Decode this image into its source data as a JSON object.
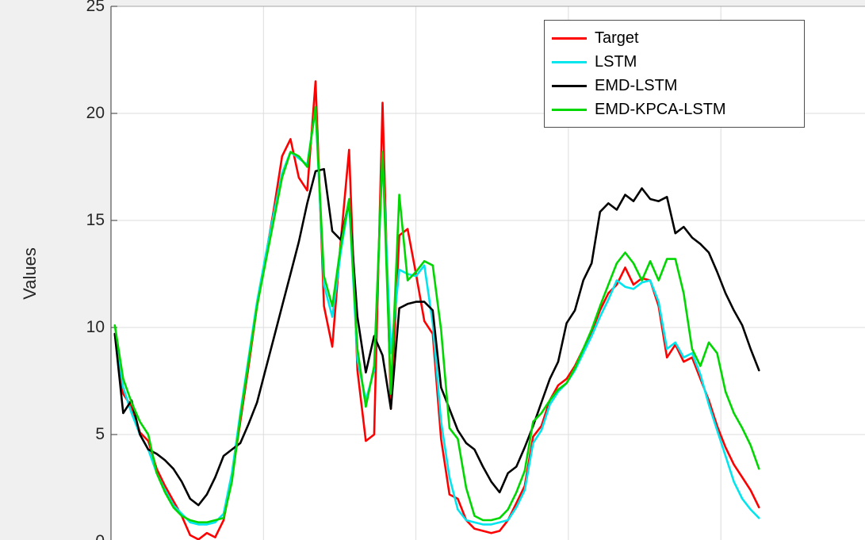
{
  "figure": {
    "background_color": "#f0f0f0",
    "plot_background_color": "#ffffff",
    "grid_color": "#dcdcdc",
    "axis_color": "#555555",
    "tick_label_color": "#262626"
  },
  "chart_data": {
    "type": "line",
    "title": "",
    "xlabel": "",
    "ylabel": "Values",
    "ylim": [
      0,
      25
    ],
    "xlim": [
      0,
      100
    ],
    "yticks": [
      0,
      5,
      10,
      15,
      20,
      25
    ],
    "x_gridlines": [
      20,
      40,
      60,
      80
    ],
    "grid": true,
    "legend_position": "top-right",
    "x_start": 0.5,
    "x_end": 85,
    "series": [
      {
        "name": "Target",
        "color": "#ff0000",
        "values": [
          9.7,
          6.9,
          6.3,
          5.1,
          4.7,
          3.4,
          2.6,
          1.9,
          1.2,
          0.3,
          0.1,
          0.4,
          0.2,
          1.0,
          3.0,
          5.6,
          8.2,
          11.0,
          13.2,
          15.5,
          18.0,
          18.8,
          17.0,
          16.4,
          21.5,
          11.0,
          9.1,
          14.0,
          18.3,
          8.0,
          4.7,
          5.0,
          20.5,
          6.2,
          14.3,
          14.6,
          12.5,
          10.3,
          9.7,
          4.8,
          2.2,
          2.0,
          1.0,
          0.6,
          0.5,
          0.4,
          0.5,
          1.0,
          1.8,
          2.6,
          4.9,
          5.4,
          6.6,
          7.3,
          7.6,
          8.2,
          9.0,
          9.8,
          10.8,
          11.6,
          12.0,
          12.8,
          12.0,
          12.3,
          12.2,
          11.0,
          8.6,
          9.2,
          8.4,
          8.6,
          7.6,
          6.6,
          5.4,
          4.4,
          3.6,
          3.0,
          2.4,
          1.6
        ]
      },
      {
        "name": "LSTM",
        "color": "#00e5ee",
        "values": [
          9.7,
          7.2,
          6.0,
          5.0,
          4.3,
          3.2,
          2.4,
          1.7,
          1.3,
          0.9,
          0.8,
          0.8,
          0.9,
          1.3,
          3.2,
          6.0,
          8.6,
          11.2,
          13.3,
          15.3,
          17.2,
          18.2,
          17.9,
          17.6,
          20.2,
          12.0,
          10.5,
          13.5,
          15.9,
          8.5,
          6.6,
          8.0,
          18.1,
          8.8,
          12.7,
          12.5,
          12.4,
          12.9,
          10.2,
          5.6,
          3.0,
          1.5,
          1.0,
          0.9,
          0.8,
          0.8,
          0.9,
          1.0,
          1.6,
          2.4,
          4.6,
          5.2,
          6.4,
          7.0,
          7.4,
          8.0,
          8.8,
          9.6,
          10.5,
          11.3,
          12.2,
          11.9,
          11.8,
          12.1,
          12.2,
          11.2,
          9.0,
          9.3,
          8.6,
          8.8,
          7.8,
          6.4,
          5.2,
          4.0,
          2.8,
          2.0,
          1.5,
          1.1
        ]
      },
      {
        "name": "EMD-LSTM",
        "color": "#000000",
        "values": [
          9.7,
          6.0,
          6.6,
          5.0,
          4.3,
          4.1,
          3.8,
          3.4,
          2.8,
          2.0,
          1.7,
          2.2,
          3.0,
          4.0,
          4.3,
          4.6,
          5.5,
          6.5,
          8.0,
          9.5,
          11.0,
          12.5,
          14.0,
          15.8,
          17.3,
          17.4,
          14.5,
          14.1,
          15.9,
          10.5,
          7.9,
          9.6,
          8.7,
          6.2,
          10.9,
          11.1,
          11.2,
          11.2,
          10.8,
          7.2,
          6.2,
          5.2,
          4.6,
          4.3,
          3.5,
          2.8,
          2.3,
          3.2,
          3.5,
          4.4,
          5.4,
          6.5,
          7.6,
          8.4,
          10.2,
          10.8,
          12.2,
          13.0,
          15.4,
          15.8,
          15.5,
          16.2,
          15.9,
          16.5,
          16.0,
          15.9,
          16.1,
          14.4,
          14.7,
          14.2,
          13.9,
          13.5,
          12.6,
          11.6,
          10.8,
          10.1,
          9.0,
          8.0
        ]
      },
      {
        "name": "EMD-KPCA-LSTM",
        "color": "#00d600",
        "values": [
          10.1,
          7.6,
          6.5,
          5.6,
          5.0,
          3.2,
          2.3,
          1.6,
          1.2,
          1.0,
          0.9,
          0.9,
          1.0,
          1.1,
          2.8,
          5.8,
          8.4,
          11.0,
          13.0,
          15.0,
          17.0,
          18.2,
          18.0,
          17.5,
          20.3,
          12.4,
          11.0,
          13.8,
          16.0,
          9.0,
          6.3,
          8.2,
          18.2,
          6.9,
          16.2,
          12.2,
          12.6,
          13.1,
          12.9,
          9.9,
          5.3,
          4.8,
          2.5,
          1.2,
          1.0,
          1.0,
          1.1,
          1.5,
          2.3,
          3.3,
          5.6,
          6.0,
          6.6,
          7.1,
          7.4,
          8.1,
          9.0,
          9.9,
          11.0,
          12.0,
          13.0,
          13.5,
          13.0,
          12.2,
          13.1,
          12.2,
          13.2,
          13.2,
          11.6,
          9.0,
          8.2,
          9.3,
          8.8,
          7.0,
          6.0,
          5.3,
          4.5,
          3.4
        ]
      }
    ]
  }
}
